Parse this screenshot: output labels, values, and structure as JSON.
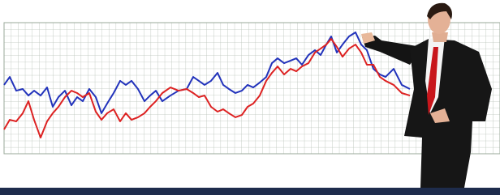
{
  "chart_data": {
    "type": "line",
    "x": [
      5,
      12,
      20,
      28,
      35,
      42,
      50,
      58,
      65,
      72,
      80,
      88,
      95,
      102,
      110,
      118,
      125,
      132,
      140,
      148,
      155,
      162,
      170,
      178,
      185,
      192,
      200,
      210,
      220,
      230,
      238,
      245,
      252,
      260,
      268,
      275,
      282,
      290,
      298,
      305,
      312,
      320,
      328,
      335,
      342,
      350,
      358,
      365,
      372,
      380,
      388,
      395,
      402,
      408,
      415,
      422,
      430,
      438,
      445,
      452,
      460,
      468,
      475,
      485,
      495,
      505
    ],
    "xlim": [
      0,
      616
    ],
    "ylim": [
      0,
      100
    ],
    "series": [
      {
        "color": "#2233bb",
        "values": [
          52.5,
          58.6,
          48.1,
          49.4,
          44.4,
          48.1,
          44.4,
          50.6,
          35.8,
          43.2,
          48.1,
          37,
          43.2,
          40.1,
          49.4,
          43.2,
          30.9,
          38.3,
          46.3,
          55.6,
          52.5,
          55.6,
          49.4,
          40.1,
          44.4,
          48.1,
          40.1,
          44.4,
          48.1,
          49.4,
          58.6,
          55.6,
          52.5,
          55.6,
          61.7,
          52.5,
          49.4,
          46.3,
          48.1,
          52.5,
          50.6,
          54.3,
          58.6,
          69.1,
          72.8,
          69.1,
          71,
          72.8,
          67.9,
          75.3,
          79,
          75.3,
          83.3,
          89.5,
          77.2,
          83.3,
          89.5,
          92.6,
          83.3,
          79,
          64.8,
          60.5,
          58.6,
          64.8,
          52.5,
          49.4
        ]
      },
      {
        "color": "#dd2222",
        "values": [
          18.5,
          25.9,
          24.7,
          30.9,
          40.1,
          25.9,
          12.3,
          24.7,
          30.9,
          35.8,
          43.2,
          48.1,
          46.3,
          43.2,
          46.3,
          32.1,
          25.9,
          30.9,
          33.9,
          24.7,
          30.9,
          25.9,
          27.8,
          30.9,
          35.8,
          40.1,
          46.3,
          50.6,
          48.1,
          49.4,
          46.3,
          43.2,
          44.4,
          35.8,
          32.1,
          33.9,
          30.9,
          27.8,
          29.6,
          35.8,
          38.3,
          44.4,
          55.6,
          61.7,
          66.6,
          60.5,
          64.8,
          62.9,
          66.6,
          69.1,
          77.2,
          80.2,
          83.3,
          87.6,
          81.5,
          74,
          80.2,
          83.3,
          77.2,
          67.9,
          67.9,
          58.6,
          55.6,
          52.5,
          46.3,
          44.4
        ]
      }
    ]
  }
}
